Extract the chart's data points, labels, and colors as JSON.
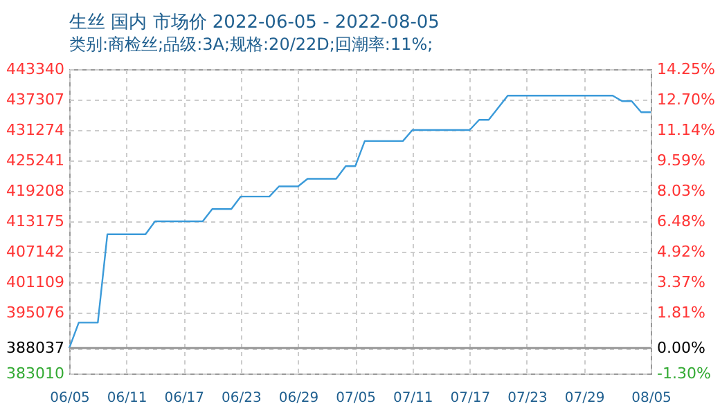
{
  "chart_data": {
    "type": "line",
    "title": "生丝 国内 市场价 2022-06-05 - 2022-08-05",
    "subtitle": "类别:商检丝;品级:3A;规格:20/22D;回潮率:11%;",
    "x": [
      "2022-06-05",
      "2022-06-06",
      "2022-06-08",
      "2022-06-09",
      "2022-06-13",
      "2022-06-14",
      "2022-06-19",
      "2022-06-20",
      "2022-06-22",
      "2022-06-23",
      "2022-06-26",
      "2022-06-27",
      "2022-06-29",
      "2022-06-30",
      "2022-07-03",
      "2022-07-04",
      "2022-07-05",
      "2022-07-06",
      "2022-07-10",
      "2022-07-11",
      "2022-07-17",
      "2022-07-18",
      "2022-07-19",
      "2022-07-21",
      "2022-08-01",
      "2022-08-02",
      "2022-08-03",
      "2022-08-04",
      "2022-08-05"
    ],
    "series": [
      {
        "color": "#3a9ad9",
        "values": [
          388037,
          393100,
          393100,
          410600,
          410600,
          413175,
          413175,
          415600,
          415600,
          418100,
          418100,
          420100,
          420100,
          421600,
          421600,
          424100,
          424100,
          429100,
          429100,
          431274,
          431274,
          433300,
          433300,
          438100,
          438100,
          437000,
          437000,
          434800,
          434800
        ]
      }
    ],
    "xlim": [
      "2022-06-05",
      "2022-08-05"
    ],
    "xticks": [
      {
        "value": "2022-06-05",
        "label": "06/05"
      },
      {
        "value": "2022-06-11",
        "label": "06/11"
      },
      {
        "value": "2022-06-17",
        "label": "06/17"
      },
      {
        "value": "2022-06-23",
        "label": "06/23"
      },
      {
        "value": "2022-06-29",
        "label": "06/29"
      },
      {
        "value": "2022-07-05",
        "label": "07/05"
      },
      {
        "value": "2022-07-11",
        "label": "07/11"
      },
      {
        "value": "2022-07-17",
        "label": "07/17"
      },
      {
        "value": "2022-07-23",
        "label": "07/23"
      },
      {
        "value": "2022-07-29",
        "label": "07/29"
      },
      {
        "value": "2022-08-05",
        "label": "08/05"
      }
    ],
    "ylim": [
      383010,
      443340
    ],
    "yticks": [
      383010,
      388037,
      395076,
      401109,
      407142,
      413175,
      419208,
      425241,
      431274,
      437307,
      443340
    ],
    "y2lim": [
      -1.3,
      14.25
    ],
    "y2ticks": [
      {
        "value": -1.3,
        "label": "-1.30%"
      },
      {
        "value": 0,
        "label": "0.00%"
      },
      {
        "value": 1.81,
        "label": "1.81%"
      },
      {
        "value": 3.37,
        "label": "3.37%"
      },
      {
        "value": 4.92,
        "label": "4.92%"
      },
      {
        "value": 6.48,
        "label": "6.48%"
      },
      {
        "value": 8.03,
        "label": "8.03%"
      },
      {
        "value": 9.59,
        "label": "9.59%"
      },
      {
        "value": 11.14,
        "label": "11.14%"
      },
      {
        "value": 12.7,
        "label": "12.70%"
      },
      {
        "value": 14.25,
        "label": "14.25%"
      }
    ],
    "ref_lines": [
      {
        "axis": "y2",
        "value": 0,
        "color": "#999999"
      }
    ],
    "grid": true,
    "marker": "none",
    "line_style": "solid"
  }
}
